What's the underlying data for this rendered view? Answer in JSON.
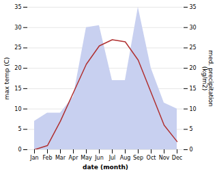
{
  "chart_data": {
    "type": "line",
    "xlabel": "date (month)",
    "ylabel": "max temp (C)",
    "y2label": "med. precipitation\n(kg/m2)",
    "categories": [
      "Jan",
      "Feb",
      "Mar",
      "Apr",
      "May",
      "Jun",
      "Jul",
      "Aug",
      "Sep",
      "Oct",
      "Nov",
      "Dec"
    ],
    "series": [
      {
        "type": "area",
        "axis": "y2",
        "color": "#c8d0f0",
        "values": [
          7,
          9,
          9,
          13,
          30,
          30.5,
          17,
          17,
          35,
          20,
          11.5,
          10
        ]
      },
      {
        "type": "line",
        "color": "#b03030",
        "values": [
          0,
          1,
          7,
          14,
          21,
          25.5,
          27,
          26.5,
          22,
          14,
          6,
          2
        ]
      }
    ],
    "ylim": [
      0,
      35
    ],
    "yticks": [
      0,
      5,
      10,
      15,
      20,
      25,
      30,
      35
    ],
    "y2lim": [
      0,
      35
    ],
    "y2ticks": [
      0,
      5,
      10,
      15,
      20,
      25,
      30,
      35
    ],
    "grid": true
  }
}
